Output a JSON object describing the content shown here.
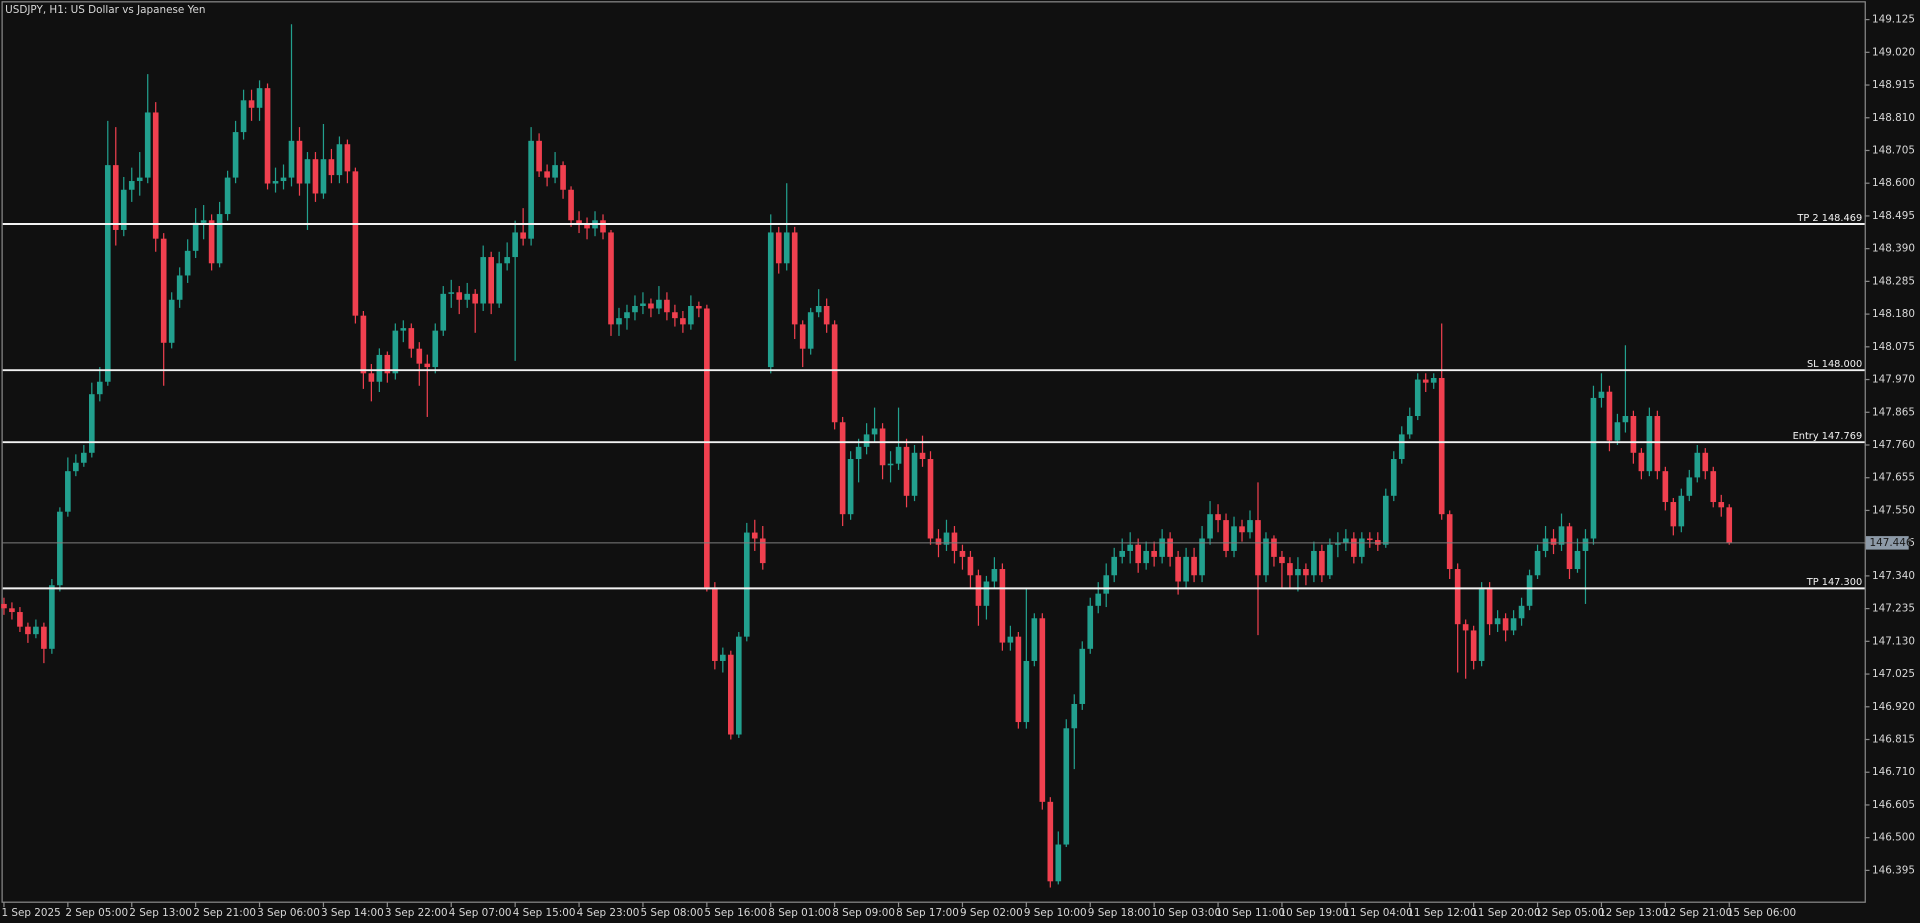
{
  "chart_data": {
    "type": "candlestick",
    "title": "USDJPY, H1:  US Dollar vs Japanese Yen",
    "up_color": "#22a08e",
    "down_color": "#f0404f",
    "ylim": [
      146.293,
      149.18
    ],
    "yticks": [
      149.125,
      {
        "value": 149.02,
        "label": "149.020"
      },
      148.915,
      {
        "value": 148.81,
        "label": "148.810"
      },
      148.705,
      {
        "value": 148.6,
        "label": "148.600"
      },
      148.495,
      {
        "value": 148.39,
        "label": "148.390"
      },
      148.285,
      {
        "value": 148.18,
        "label": "148.180"
      },
      148.075,
      {
        "value": 147.97,
        "label": "147.970"
      },
      147.865,
      {
        "value": 147.76,
        "label": "147.760"
      },
      147.655,
      {
        "value": 147.55,
        "label": "147.550"
      },
      147.445,
      {
        "value": 147.34,
        "label": "147.340"
      },
      147.235,
      {
        "value": 147.13,
        "label": "147.130"
      },
      147.025,
      {
        "value": 146.92,
        "label": "146.920"
      },
      146.815,
      {
        "value": 146.71,
        "label": "146.710"
      },
      146.605,
      {
        "value": 146.5,
        "label": "146.500"
      },
      146.395
    ],
    "levels": [
      {
        "label": "TP 2 148.469",
        "value": 148.469
      },
      {
        "label": "SL 148.000",
        "value": 148.0
      },
      {
        "label": "Entry 147.769",
        "value": 147.769
      },
      {
        "label": "TP 147.300",
        "value": 147.3
      }
    ],
    "current_price": 147.446,
    "categories": [
      "1 Sep 2025",
      null,
      null,
      null,
      null,
      null,
      null,
      null,
      "2 Sep 05:00",
      null,
      null,
      null,
      null,
      null,
      null,
      null,
      "2 Sep 13:00",
      null,
      null,
      null,
      null,
      null,
      null,
      null,
      "2 Sep 21:00",
      null,
      null,
      null,
      null,
      null,
      null,
      null,
      "3 Sep 06:00",
      null,
      null,
      null,
      null,
      null,
      null,
      null,
      "3 Sep 14:00",
      null,
      null,
      null,
      null,
      null,
      null,
      null,
      "3 Sep 22:00",
      null,
      null,
      null,
      null,
      null,
      null,
      null,
      "4 Sep 07:00",
      null,
      null,
      null,
      null,
      null,
      null,
      null,
      "4 Sep 15:00",
      null,
      null,
      null,
      null,
      null,
      null,
      null,
      "4 Sep 23:00",
      null,
      null,
      null,
      null,
      null,
      null,
      null,
      "5 Sep 08:00",
      null,
      null,
      null,
      null,
      null,
      null,
      null,
      "5 Sep 16:00",
      null,
      null,
      null,
      null,
      null,
      null,
      null,
      "8 Sep 01:00",
      null,
      null,
      null,
      null,
      null,
      null,
      null,
      "8 Sep 09:00",
      null,
      null,
      null,
      null,
      null,
      null,
      null,
      "8 Sep 17:00",
      null,
      null,
      null,
      null,
      null,
      null,
      null,
      "9 Sep 02:00",
      null,
      null,
      null,
      null,
      null,
      null,
      null,
      "9 Sep 10:00",
      null,
      null,
      null,
      null,
      null,
      null,
      null,
      "9 Sep 18:00",
      null,
      null,
      null,
      null,
      null,
      null,
      null,
      "10 Sep 03:00",
      null,
      null,
      null,
      null,
      null,
      null,
      null,
      "10 Sep 11:00",
      null,
      null,
      null,
      null,
      null,
      null,
      null,
      "10 Sep 19:00",
      null,
      null,
      null,
      null,
      null,
      null,
      null,
      "11 Sep 04:00",
      null,
      null,
      null,
      null,
      null,
      null,
      null,
      "11 Sep 12:00",
      null,
      null,
      null,
      null,
      null,
      null,
      null,
      "11 Sep 20:00",
      null,
      null,
      null,
      null,
      null,
      null,
      null,
      "12 Sep 05:00",
      null,
      null,
      null,
      null,
      null,
      null,
      null,
      "12 Sep 13:00",
      null,
      null,
      null,
      null,
      null,
      null,
      null,
      "12 Sep 21:00",
      null,
      null,
      null,
      null,
      null,
      null,
      null,
      "15 Sep 06:00"
    ],
    "open": [
      147.25,
      147.236,
      147.224,
      147.177,
      147.153,
      147.177,
      147.106,
      147.31,
      147.546,
      147.676,
      147.703,
      147.735,
      147.923,
      147.963,
      148.658,
      148.45,
      148.579,
      148.607,
      148.618,
      148.827,
      148.422,
      148.088,
      148.226,
      148.304,
      148.383,
      148.473,
      148.481,
      148.343,
      148.501,
      148.618,
      148.764,
      148.866,
      148.842,
      148.905,
      148.599,
      148.607,
      148.618,
      148.736,
      148.599,
      148.677,
      148.567,
      148.677,
      148.626,
      148.725,
      148.638,
      148.175,
      147.99,
      147.963,
      148.049,
      147.99,
      148.127,
      148.135,
      148.069,
      148.021,
      148.01,
      148.127,
      148.245,
      148.25,
      148.226,
      148.245,
      148.214,
      148.363,
      148.214,
      148.343,
      148.363,
      148.442,
      148.422,
      148.736,
      148.638,
      148.618,
      148.658,
      148.579,
      148.481,
      148.47,
      148.455,
      148.481,
      148.442,
      148.147,
      148.167,
      148.186,
      148.206,
      148.214,
      148.198,
      148.226,
      148.186,
      148.167,
      148.147,
      148.206,
      148.198,
      147.303,
      147.067,
      147.087,
      146.831,
      147.145,
      147.479,
      147.46,
      148.01,
      148.442,
      148.343,
      148.442,
      148.147,
      148.069,
      148.186,
      148.206,
      148.147,
      147.833,
      147.538,
      147.715,
      147.754,
      147.794,
      147.813,
      147.695,
      147.7,
      147.754,
      147.597,
      147.735,
      147.715,
      147.46,
      147.44,
      147.479,
      147.42,
      147.401,
      147.342,
      147.244,
      147.322,
      147.362,
      147.126,
      147.145,
      146.871,
      147.067,
      147.204,
      146.615,
      146.36,
      146.478,
      146.851,
      146.929,
      147.106,
      147.244,
      147.283,
      147.342,
      147.401,
      147.42,
      147.44,
      147.381,
      147.42,
      147.401,
      147.46,
      147.401,
      147.322,
      147.401,
      147.342,
      147.46,
      147.538,
      147.519,
      147.42,
      147.499,
      147.48,
      147.519,
      147.342,
      147.46,
      147.401,
      147.381,
      147.342,
      147.362,
      147.342,
      147.42,
      147.342,
      147.44,
      147.445,
      147.46,
      147.401,
      147.46,
      147.455,
      147.44,
      147.597,
      147.715,
      147.794,
      147.853,
      147.97,
      147.96,
      147.975,
      147.538,
      147.362,
      147.185,
      147.165,
      147.067,
      147.303,
      147.185,
      147.204,
      147.165,
      147.204,
      147.244,
      147.342,
      147.42,
      147.46,
      147.44,
      147.499,
      147.362,
      147.42,
      147.46,
      147.911,
      147.931,
      147.774,
      147.833,
      147.853,
      147.735,
      147.676,
      147.853,
      147.676,
      147.577,
      147.499,
      147.597,
      147.656,
      147.735,
      147.676,
      147.577,
      147.56
    ],
    "high": [
      147.27,
      147.255,
      147.24,
      147.19,
      147.2,
      147.19,
      147.33,
      147.56,
      147.72,
      147.73,
      147.76,
      147.96,
      148.01,
      148.8,
      148.78,
      148.62,
      148.65,
      148.7,
      148.95,
      148.86,
      148.44,
      148.25,
      148.33,
      148.42,
      148.52,
      148.53,
      148.5,
      148.54,
      148.64,
      148.8,
      148.9,
      148.9,
      148.93,
      148.92,
      148.65,
      148.66,
      149.11,
      148.78,
      148.7,
      148.7,
      148.79,
      148.71,
      148.75,
      148.74,
      148.65,
      148.19,
      148.02,
      148.07,
      148.06,
      148.15,
      148.16,
      148.15,
      148.09,
      148.05,
      148.15,
      148.27,
      148.29,
      148.27,
      148.28,
      148.26,
      148.4,
      148.38,
      148.38,
      148.41,
      148.48,
      148.52,
      148.78,
      148.76,
      148.66,
      148.7,
      148.67,
      148.59,
      148.51,
      148.49,
      148.51,
      148.5,
      148.45,
      148.2,
      148.21,
      148.24,
      148.25,
      148.23,
      148.27,
      148.25,
      148.21,
      148.19,
      148.24,
      148.22,
      148.21,
      147.32,
      147.11,
      147.1,
      147.16,
      147.51,
      147.52,
      147.5,
      148.5,
      148.46,
      148.6,
      148.46,
      148.16,
      148.2,
      148.26,
      148.23,
      148.16,
      147.85,
      147.74,
      147.78,
      147.83,
      147.88,
      147.83,
      147.74,
      147.88,
      147.78,
      147.76,
      147.79,
      147.74,
      147.49,
      147.52,
      147.5,
      147.44,
      147.42,
      147.36,
      147.34,
      147.4,
      147.38,
      147.18,
      147.16,
      147.3,
      147.22,
      147.22,
      146.63,
      146.52,
      146.88,
      146.96,
      147.13,
      147.27,
      147.32,
      147.38,
      147.43,
      147.46,
      147.48,
      147.46,
      147.45,
      147.45,
      147.49,
      147.48,
      147.42,
      147.43,
      147.43,
      147.5,
      147.58,
      147.57,
      147.54,
      147.53,
      147.52,
      147.55,
      147.64,
      147.48,
      147.47,
      147.42,
      147.4,
      147.4,
      147.38,
      147.45,
      147.44,
      147.46,
      147.48,
      147.49,
      147.48,
      147.48,
      147.48,
      147.48,
      147.62,
      147.74,
      147.82,
      147.88,
      147.99,
      147.99,
      147.99,
      148.15,
      147.55,
      147.38,
      147.2,
      147.18,
      147.32,
      147.32,
      147.23,
      147.22,
      147.23,
      147.27,
      147.36,
      147.44,
      147.5,
      147.49,
      147.54,
      147.51,
      147.46,
      147.49,
      147.95,
      147.99,
      147.95,
      147.86,
      148.08,
      147.87,
      147.75,
      147.88,
      147.87,
      147.69,
      147.59,
      147.62,
      147.68,
      147.76,
      147.75,
      147.69,
      147.6,
      147.57
    ],
    "low": [
      147.215,
      147.2,
      147.16,
      147.125,
      147.14,
      147.06,
      147.09,
      147.29,
      147.53,
      147.66,
      147.69,
      147.72,
      147.9,
      147.95,
      148.4,
      148.43,
      148.54,
      148.56,
      148.6,
      148.38,
      147.95,
      148.07,
      148.2,
      148.28,
      148.36,
      148.42,
      148.32,
      148.33,
      148.48,
      148.6,
      148.74,
      148.8,
      148.8,
      148.58,
      148.57,
      148.58,
      148.59,
      148.56,
      148.45,
      148.54,
      148.55,
      148.6,
      148.6,
      148.6,
      148.15,
      147.94,
      147.9,
      147.93,
      147.96,
      147.97,
      148.09,
      148.04,
      147.95,
      147.85,
      147.99,
      148.11,
      148.2,
      148.18,
      148.2,
      148.12,
      148.19,
      148.18,
      148.2,
      148.32,
      148.03,
      148.4,
      148.4,
      148.62,
      148.59,
      148.6,
      148.55,
      148.46,
      148.44,
      148.42,
      148.43,
      148.42,
      148.11,
      148.11,
      148.13,
      148.16,
      148.18,
      148.17,
      148.18,
      148.16,
      148.14,
      148.12,
      148.13,
      148.17,
      147.29,
      147.04,
      147.03,
      146.815,
      146.82,
      147.13,
      147.42,
      147.36,
      147.99,
      148.31,
      148.32,
      148.1,
      148.01,
      148.05,
      148.17,
      148.12,
      147.81,
      147.5,
      147.52,
      147.64,
      147.73,
      147.77,
      147.65,
      147.64,
      147.68,
      147.56,
      147.58,
      147.69,
      147.44,
      147.4,
      147.42,
      147.38,
      147.36,
      147.3,
      147.18,
      147.2,
      147.3,
      147.1,
      147.1,
      146.85,
      146.85,
      147.05,
      146.59,
      146.34,
      146.35,
      146.47,
      146.72,
      146.91,
      147.09,
      147.22,
      147.24,
      147.32,
      147.38,
      147.38,
      147.35,
      147.36,
      147.37,
      147.38,
      147.37,
      147.28,
      147.3,
      147.32,
      147.32,
      147.44,
      147.48,
      147.4,
      147.4,
      147.45,
      147.46,
      147.15,
      147.32,
      147.37,
      147.3,
      147.3,
      147.29,
      147.31,
      147.32,
      147.32,
      147.33,
      147.4,
      147.42,
      147.38,
      147.38,
      147.43,
      147.42,
      147.43,
      147.58,
      147.7,
      147.78,
      147.84,
      147.93,
      147.94,
      147.52,
      147.33,
      147.03,
      147.01,
      147.04,
      147.05,
      147.15,
      147.16,
      147.13,
      147.15,
      147.18,
      147.23,
      147.33,
      147.4,
      147.41,
      147.42,
      147.33,
      147.35,
      147.25,
      147.44,
      147.88,
      147.74,
      147.76,
      147.8,
      147.7,
      147.65,
      147.66,
      147.65,
      147.55,
      147.47,
      147.48,
      147.58,
      147.64,
      147.65,
      147.56,
      147.53,
      147.44
    ],
    "close": [
      147.236,
      147.224,
      147.177,
      147.153,
      147.177,
      147.106,
      147.31,
      147.546,
      147.676,
      147.703,
      147.735,
      147.923,
      147.963,
      148.658,
      148.45,
      148.579,
      148.607,
      148.618,
      148.827,
      148.422,
      148.088,
      148.226,
      148.304,
      148.383,
      148.473,
      148.481,
      148.343,
      148.501,
      148.618,
      148.764,
      148.866,
      148.842,
      148.905,
      148.599,
      148.607,
      148.618,
      148.736,
      148.599,
      148.677,
      148.567,
      148.677,
      148.626,
      148.725,
      148.638,
      148.175,
      147.99,
      147.963,
      148.049,
      147.99,
      148.127,
      148.135,
      148.069,
      148.021,
      148.01,
      148.127,
      148.245,
      148.25,
      148.226,
      148.245,
      148.214,
      148.363,
      148.214,
      148.343,
      148.363,
      148.442,
      148.422,
      148.736,
      148.638,
      148.618,
      148.658,
      148.579,
      148.481,
      148.47,
      148.455,
      148.481,
      148.442,
      148.147,
      148.167,
      148.186,
      148.206,
      148.214,
      148.198,
      148.226,
      148.186,
      148.167,
      148.147,
      148.206,
      148.198,
      147.303,
      147.067,
      147.087,
      146.831,
      147.145,
      147.479,
      147.46,
      147.381,
      148.442,
      148.343,
      148.442,
      148.147,
      148.069,
      148.186,
      148.206,
      148.147,
      147.833,
      147.538,
      147.715,
      147.754,
      147.794,
      147.813,
      147.695,
      147.7,
      147.754,
      147.597,
      147.735,
      147.715,
      147.46,
      147.44,
      147.479,
      147.42,
      147.401,
      147.342,
      147.244,
      147.322,
      147.362,
      147.126,
      147.145,
      146.871,
      147.067,
      147.204,
      146.615,
      146.36,
      146.478,
      146.851,
      146.929,
      147.106,
      147.244,
      147.283,
      147.342,
      147.401,
      147.42,
      147.44,
      147.381,
      147.42,
      147.401,
      147.46,
      147.401,
      147.322,
      147.401,
      147.342,
      147.46,
      147.538,
      147.519,
      147.42,
      147.499,
      147.48,
      147.519,
      147.342,
      147.46,
      147.401,
      147.381,
      147.342,
      147.362,
      147.342,
      147.42,
      147.342,
      147.44,
      147.445,
      147.46,
      147.401,
      147.46,
      147.455,
      147.44,
      147.597,
      147.715,
      147.794,
      147.853,
      147.97,
      147.96,
      147.975,
      147.538,
      147.362,
      147.185,
      147.165,
      147.067,
      147.303,
      147.185,
      147.204,
      147.165,
      147.204,
      147.244,
      147.342,
      147.42,
      147.46,
      147.44,
      147.499,
      147.362,
      147.42,
      147.46,
      147.911,
      147.931,
      147.774,
      147.833,
      147.853,
      147.735,
      147.676,
      147.853,
      147.676,
      147.577,
      147.499,
      147.597,
      147.656,
      147.735,
      147.676,
      147.577,
      147.56,
      147.446
    ]
  }
}
